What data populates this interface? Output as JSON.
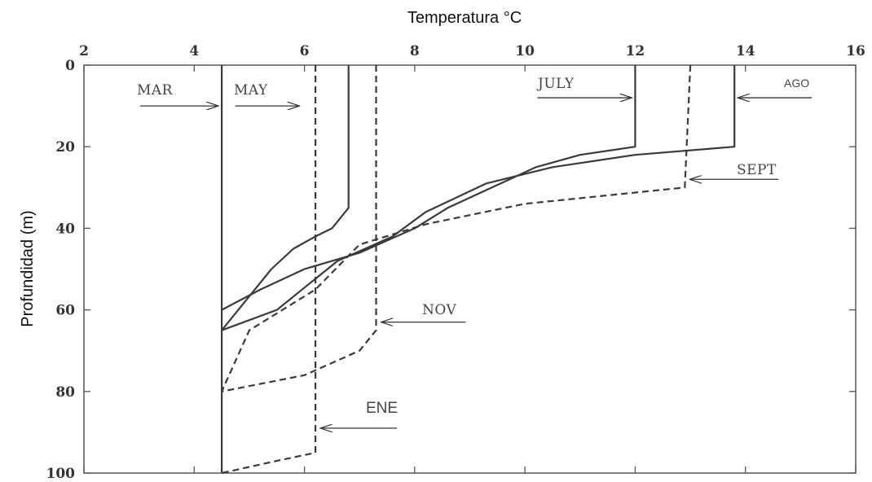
{
  "chart_data": {
    "type": "line",
    "xlabel": "Temperatura °C",
    "ylabel": "Profundidad (m)",
    "xlim": [
      2,
      16
    ],
    "ylim": [
      0,
      100
    ],
    "y_inverted": true,
    "x_axis_position": "top",
    "x_ticks": [
      2,
      4,
      6,
      8,
      10,
      12,
      14,
      16
    ],
    "y_ticks": [
      0,
      20,
      40,
      60,
      80,
      100
    ],
    "grid": false,
    "series": [
      {
        "name": "MAR",
        "style": "solid",
        "points": [
          [
            4.5,
            0
          ],
          [
            4.5,
            100
          ]
        ]
      },
      {
        "name": "MAY",
        "style": "solid",
        "points": [
          [
            6.8,
            0
          ],
          [
            6.8,
            35
          ],
          [
            6.5,
            40
          ],
          [
            6.2,
            42
          ],
          [
            5.8,
            45
          ],
          [
            5.4,
            50
          ],
          [
            5.1,
            55
          ],
          [
            4.8,
            60
          ],
          [
            4.5,
            65
          ]
        ]
      },
      {
        "name": "JULY",
        "style": "solid",
        "points": [
          [
            12.0,
            0
          ],
          [
            12.0,
            20
          ],
          [
            11.0,
            22
          ],
          [
            10.2,
            25
          ],
          [
            9.4,
            30
          ],
          [
            8.6,
            35
          ],
          [
            8.0,
            40
          ],
          [
            7.0,
            46
          ],
          [
            6.0,
            50
          ],
          [
            5.2,
            55
          ],
          [
            4.5,
            60
          ]
        ]
      },
      {
        "name": "AGO",
        "style": "solid",
        "points": [
          [
            13.8,
            0
          ],
          [
            13.8,
            20
          ],
          [
            12.0,
            22
          ],
          [
            10.5,
            25
          ],
          [
            9.3,
            29
          ],
          [
            8.2,
            36
          ],
          [
            7.6,
            42
          ],
          [
            6.6,
            48
          ],
          [
            5.5,
            60
          ],
          [
            4.5,
            65
          ]
        ]
      },
      {
        "name": "SEPT",
        "style": "dashed",
        "points": [
          [
            13.0,
            0
          ],
          [
            12.9,
            30
          ],
          [
            10.0,
            34
          ],
          [
            8.2,
            39
          ],
          [
            7.0,
            44
          ],
          [
            6.2,
            55
          ],
          [
            5.0,
            65
          ],
          [
            4.5,
            80
          ]
        ]
      },
      {
        "name": "NOV",
        "style": "dashed",
        "points": [
          [
            7.3,
            0
          ],
          [
            7.3,
            65
          ],
          [
            7.0,
            70
          ],
          [
            6.0,
            76
          ],
          [
            4.5,
            80
          ]
        ]
      },
      {
        "name": "ENE",
        "style": "dashed",
        "points": [
          [
            6.2,
            0
          ],
          [
            6.2,
            95
          ],
          [
            5.5,
            97
          ],
          [
            4.5,
            100
          ]
        ]
      }
    ],
    "annotations": [
      {
        "text": "MAR",
        "arrow_to": [
          4.5,
          10
        ]
      },
      {
        "text": "MAY",
        "arrow_to": [
          6.0,
          10
        ]
      },
      {
        "text": "JULY",
        "arrow_to": [
          12.0,
          8
        ]
      },
      {
        "text": "AGO",
        "arrow_to": [
          13.8,
          8
        ]
      },
      {
        "text": "SEPT",
        "arrow_to": [
          12.9,
          28
        ]
      },
      {
        "text": "NOV",
        "arrow_to": [
          7.3,
          63
        ]
      },
      {
        "text": "ENE",
        "arrow_to": [
          6.2,
          89
        ]
      }
    ]
  }
}
